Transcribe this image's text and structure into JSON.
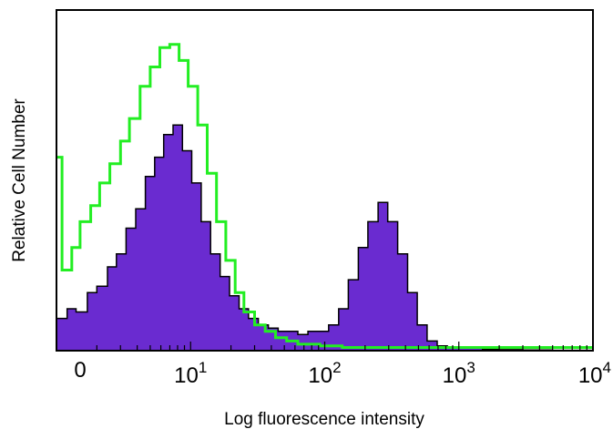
{
  "chart_data": {
    "type": "area",
    "title": "",
    "xlabel": "Log fluorescence intensity",
    "ylabel": "Relative Cell Number",
    "x_scale": "log",
    "xlim": [
      1,
      10000
    ],
    "ylim": [
      0,
      100
    ],
    "grid": false,
    "legend": "none",
    "x_ticks": [
      {
        "base": "10",
        "exp": "0",
        "value": 1
      },
      {
        "base": "10",
        "exp": "1",
        "value": 10
      },
      {
        "base": "10",
        "exp": "2",
        "value": 100
      },
      {
        "base": "10",
        "exp": "3",
        "value": 1000
      },
      {
        "base": "10",
        "exp": "4",
        "value": 10000
      }
    ],
    "series": [
      {
        "style": "filled",
        "fill_color": "#6a2bd0",
        "line_color": "#000000",
        "x": [
          1.0,
          1.2,
          1.4,
          1.7,
          2.0,
          2.4,
          2.8,
          3.3,
          3.9,
          4.6,
          5.4,
          6.3,
          7.4,
          8.7,
          10.2,
          12.0,
          14.1,
          16.6,
          19.5,
          23,
          27,
          32,
          38,
          45,
          53,
          63,
          75,
          90,
          107,
          127,
          150,
          178,
          210,
          250,
          295,
          350,
          415,
          490,
          580,
          690,
          820,
          1000,
          1200,
          1500,
          2000,
          3000,
          5000,
          10000
        ],
        "values": [
          10,
          13,
          12,
          18,
          20,
          26,
          30,
          38,
          44,
          54,
          60,
          67,
          70,
          62,
          52,
          40,
          30,
          23,
          17,
          13,
          10,
          8,
          7,
          6,
          6,
          5,
          6,
          6,
          8,
          13,
          22,
          32,
          40,
          46,
          40,
          30,
          18,
          8,
          3,
          1.5,
          1,
          1,
          0.8,
          0.5,
          0.3,
          0.2,
          0.1,
          0
        ]
      },
      {
        "style": "line",
        "line_color": "#22ee22",
        "x": [
          1.0,
          1.1,
          1.3,
          1.5,
          1.8,
          2.1,
          2.5,
          3.0,
          3.5,
          4.2,
          5.0,
          5.9,
          7.0,
          8.2,
          9.6,
          11.3,
          13.3,
          15.6,
          18.3,
          21.5,
          25,
          30,
          36,
          43,
          52,
          63,
          76,
          92,
          110,
          135,
          170,
          220,
          300,
          400,
          600,
          1000,
          2000,
          5000,
          10000
        ],
        "values": [
          60,
          25,
          32,
          40,
          45,
          52,
          58,
          65,
          72,
          82,
          88,
          94,
          95,
          90,
          82,
          70,
          55,
          40,
          28,
          18,
          12,
          8,
          6,
          4,
          3,
          2,
          2,
          1.5,
          1.5,
          1,
          1,
          1,
          1,
          1,
          1,
          1,
          1,
          1,
          1
        ]
      }
    ]
  }
}
